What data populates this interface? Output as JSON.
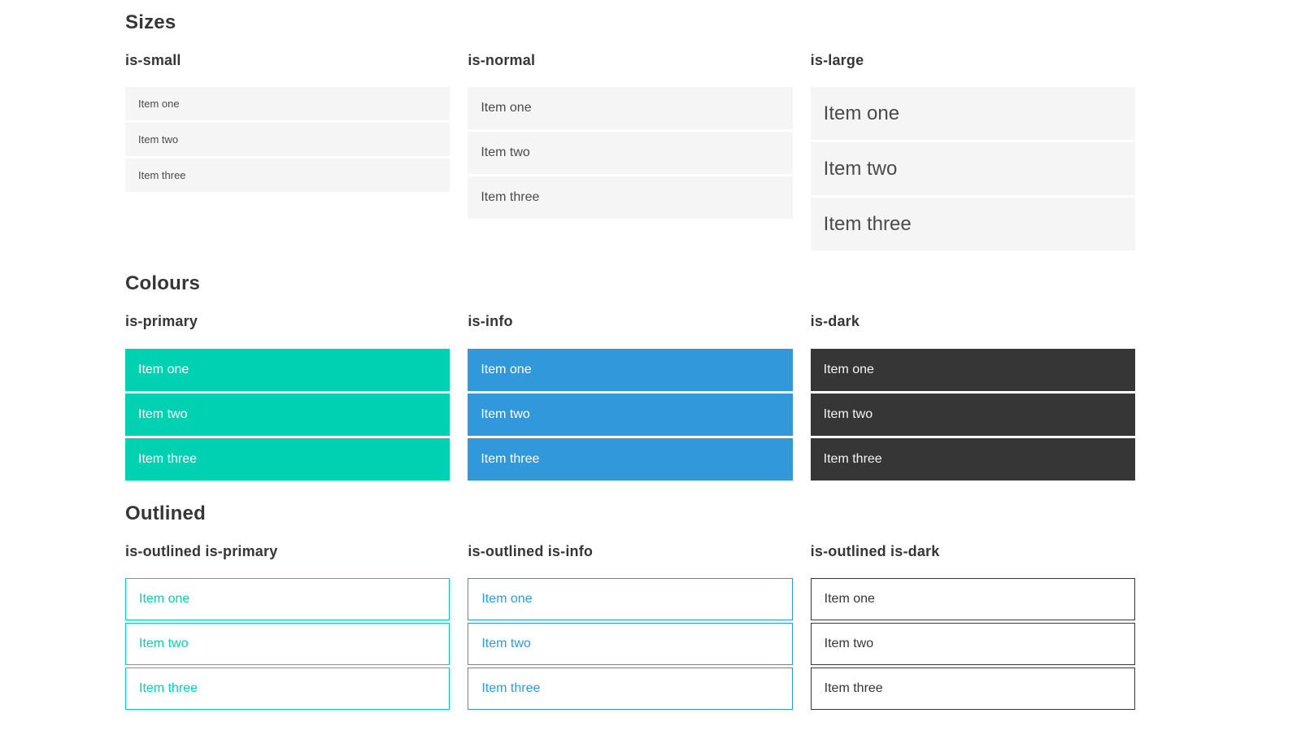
{
  "colors": {
    "primary": "#00d1b2",
    "info": "#3298dc",
    "dark": "#363636",
    "item_background": "#f5f5f5",
    "item_text": "#4a4a4a",
    "heading_text": "#363636",
    "light_text": "#ffffff"
  },
  "sections": [
    {
      "title": "Sizes",
      "groups": [
        {
          "label": "is-small",
          "variant": "size-small",
          "items": [
            "Item one",
            "Item two",
            "Item three"
          ]
        },
        {
          "label": "is-normal",
          "variant": "size-normal",
          "items": [
            "Item one",
            "Item two",
            "Item three"
          ]
        },
        {
          "label": "is-large",
          "variant": "size-large",
          "items": [
            "Item one",
            "Item two",
            "Item three"
          ]
        }
      ]
    },
    {
      "title": "Colours",
      "groups": [
        {
          "label": "is-primary",
          "variant": "color-primary",
          "items": [
            "Item one",
            "Item two",
            "Item three"
          ]
        },
        {
          "label": "is-info",
          "variant": "color-info",
          "items": [
            "Item one",
            "Item two",
            "Item three"
          ]
        },
        {
          "label": "is-dark",
          "variant": "color-dark",
          "items": [
            "Item one",
            "Item two",
            "Item three"
          ]
        }
      ]
    },
    {
      "title": "Outlined",
      "groups": [
        {
          "label": "is-outlined is-primary",
          "variant": "outlined-primary",
          "items": [
            "Item one",
            "Item two",
            "Item three"
          ]
        },
        {
          "label": "is-outlined is-info",
          "variant": "outlined-info",
          "items": [
            "Item one",
            "Item two",
            "Item three"
          ]
        },
        {
          "label": "is-outlined is-dark",
          "variant": "outlined-dark",
          "items": [
            "Item one",
            "Item two",
            "Item three"
          ]
        }
      ]
    }
  ]
}
